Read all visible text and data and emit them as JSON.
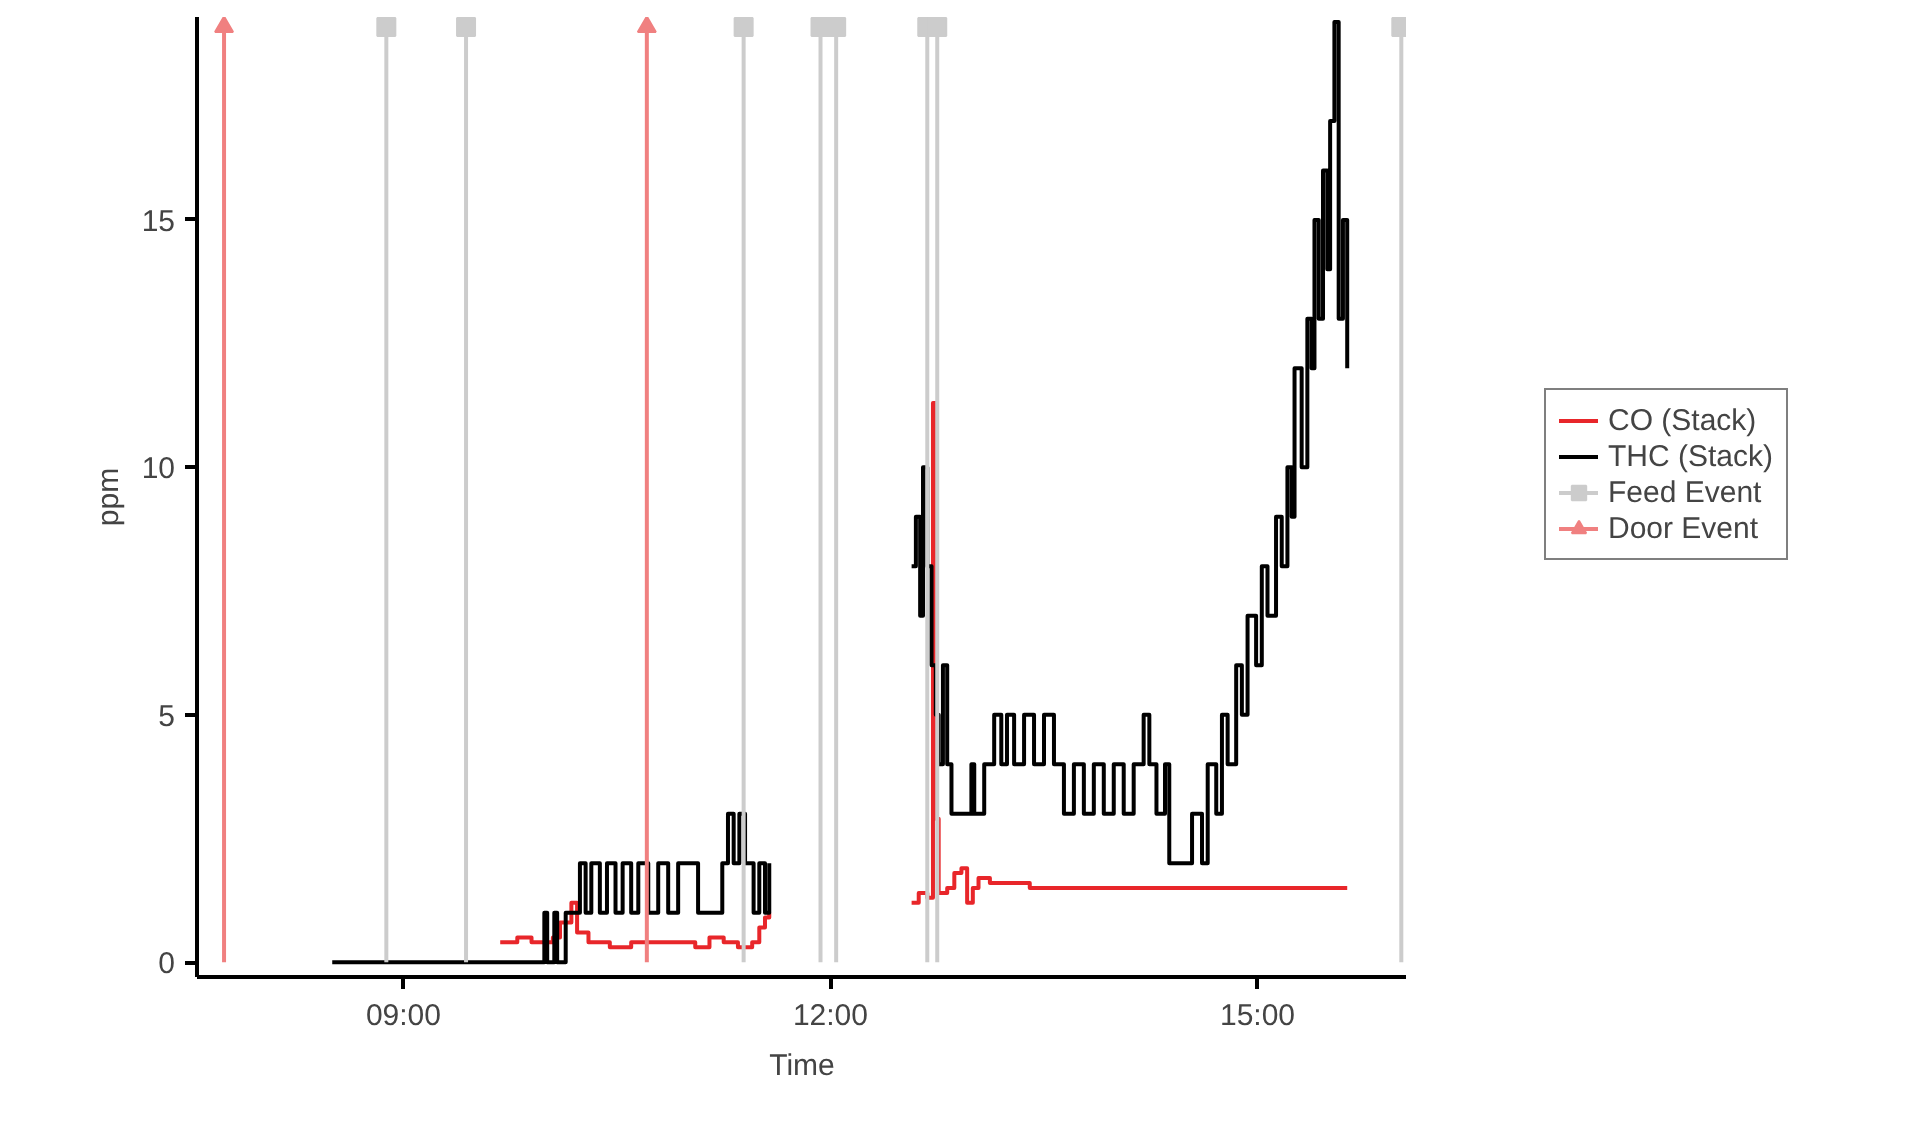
{
  "chart_data": {
    "type": "step",
    "xlabel": "Time",
    "ylabel": "ppm",
    "xlim": [
      7.55,
      16.05
    ],
    "ylim": [
      -0.3,
      19.1
    ],
    "xticks": [
      {
        "value": 9,
        "label": "09:00"
      },
      {
        "value": 12,
        "label": "12:00"
      },
      {
        "value": 15,
        "label": "15:00"
      }
    ],
    "yticks": [
      0,
      5,
      10,
      15
    ],
    "grid": false,
    "legend": "right",
    "line_style": "solid",
    "series": [
      {
        "name": "CO (Stack)",
        "color": "#e8262a",
        "x": [
          9.68,
          9.8,
          9.9,
          10.05,
          10.1,
          10.18,
          10.22,
          10.3,
          10.45,
          10.6,
          10.75,
          10.9,
          11.05,
          11.15,
          11.25,
          11.35,
          11.45,
          11.5,
          11.54,
          11.57,
          12.0,
          12.57,
          12.62,
          12.68,
          12.72,
          12.74,
          12.76,
          12.82,
          12.87,
          12.92,
          12.96,
          13.0,
          13.04,
          13.12,
          13.25,
          13.4,
          13.6,
          13.8,
          14.0,
          14.3,
          14.6,
          15.0,
          15.3,
          15.63
        ],
        "values": [
          0.4,
          0.5,
          0.4,
          0.5,
          0.8,
          1.2,
          0.6,
          0.4,
          0.3,
          0.4,
          0.4,
          0.4,
          0.3,
          0.5,
          0.4,
          0.3,
          0.4,
          0.7,
          0.9,
          1.0,
          null,
          1.2,
          1.4,
          1.3,
          11.3,
          2.9,
          1.4,
          1.5,
          1.8,
          1.9,
          1.2,
          1.5,
          1.7,
          1.6,
          1.6,
          1.5,
          1.5,
          1.5,
          1.5,
          1.5,
          1.5,
          1.5,
          1.5,
          1.5
        ]
      },
      {
        "name": "THC (Stack)",
        "color": "#000000",
        "x": [
          8.5,
          9.96,
          9.99,
          10.01,
          10.06,
          10.08,
          10.14,
          10.21,
          10.24,
          10.28,
          10.32,
          10.38,
          10.43,
          10.49,
          10.54,
          10.6,
          10.65,
          10.72,
          10.79,
          10.86,
          10.93,
          11.0,
          11.07,
          11.18,
          11.24,
          11.28,
          11.32,
          11.36,
          11.4,
          11.46,
          11.5,
          11.54,
          11.57,
          12.0,
          12.57,
          12.6,
          12.63,
          12.65,
          12.68,
          12.71,
          12.74,
          12.76,
          12.79,
          12.82,
          12.85,
          12.94,
          12.99,
          13.01,
          13.08,
          13.15,
          13.2,
          13.24,
          13.29,
          13.36,
          13.43,
          13.5,
          13.57,
          13.64,
          13.71,
          13.78,
          13.85,
          13.92,
          13.99,
          14.06,
          14.13,
          14.2,
          14.24,
          14.29,
          14.35,
          14.38,
          14.47,
          14.54,
          14.61,
          14.65,
          14.71,
          14.75,
          14.79,
          14.85,
          14.89,
          14.93,
          14.99,
          15.03,
          15.07,
          15.13,
          15.17,
          15.21,
          15.24,
          15.26,
          15.31,
          15.35,
          15.38,
          15.4,
          15.43,
          15.46,
          15.49,
          15.51,
          15.54,
          15.57,
          15.6,
          15.63
        ],
        "values": [
          0,
          0,
          1,
          0,
          1,
          0,
          1,
          1,
          2,
          1,
          2,
          1,
          2,
          1,
          2,
          1,
          2,
          1,
          2,
          1,
          2,
          2,
          1,
          1,
          2,
          3,
          2,
          3,
          2,
          1,
          2,
          1,
          2,
          null,
          8,
          9,
          7,
          10,
          8,
          6,
          5,
          4,
          6,
          4,
          3,
          3,
          4,
          3,
          4,
          5,
          4,
          5,
          4,
          5,
          4,
          5,
          4,
          3,
          4,
          3,
          4,
          3,
          4,
          3,
          4,
          5,
          4,
          3,
          4,
          2,
          2,
          3,
          2,
          4,
          3,
          5,
          4,
          6,
          5,
          7,
          6,
          8,
          7,
          9,
          8,
          10,
          9,
          12,
          10,
          13,
          12,
          15,
          13,
          16,
          14,
          17,
          19,
          13,
          15,
          12
        ]
      },
      {
        "name": "Feed Event",
        "type": "lollipop",
        "marker": "square",
        "color": "#cccccc",
        "x": [
          8.88,
          9.44,
          11.39,
          11.93,
          12.04,
          12.68,
          12.75,
          16.01
        ],
        "values": [
          18.9,
          18.9,
          18.9,
          18.9,
          18.9,
          18.9,
          18.9,
          18.9
        ]
      },
      {
        "name": "Door Event",
        "type": "lollipop",
        "marker": "triangle",
        "color": "#f08080",
        "x": [
          7.74,
          10.71
        ],
        "values": [
          18.9,
          18.9
        ]
      }
    ]
  }
}
